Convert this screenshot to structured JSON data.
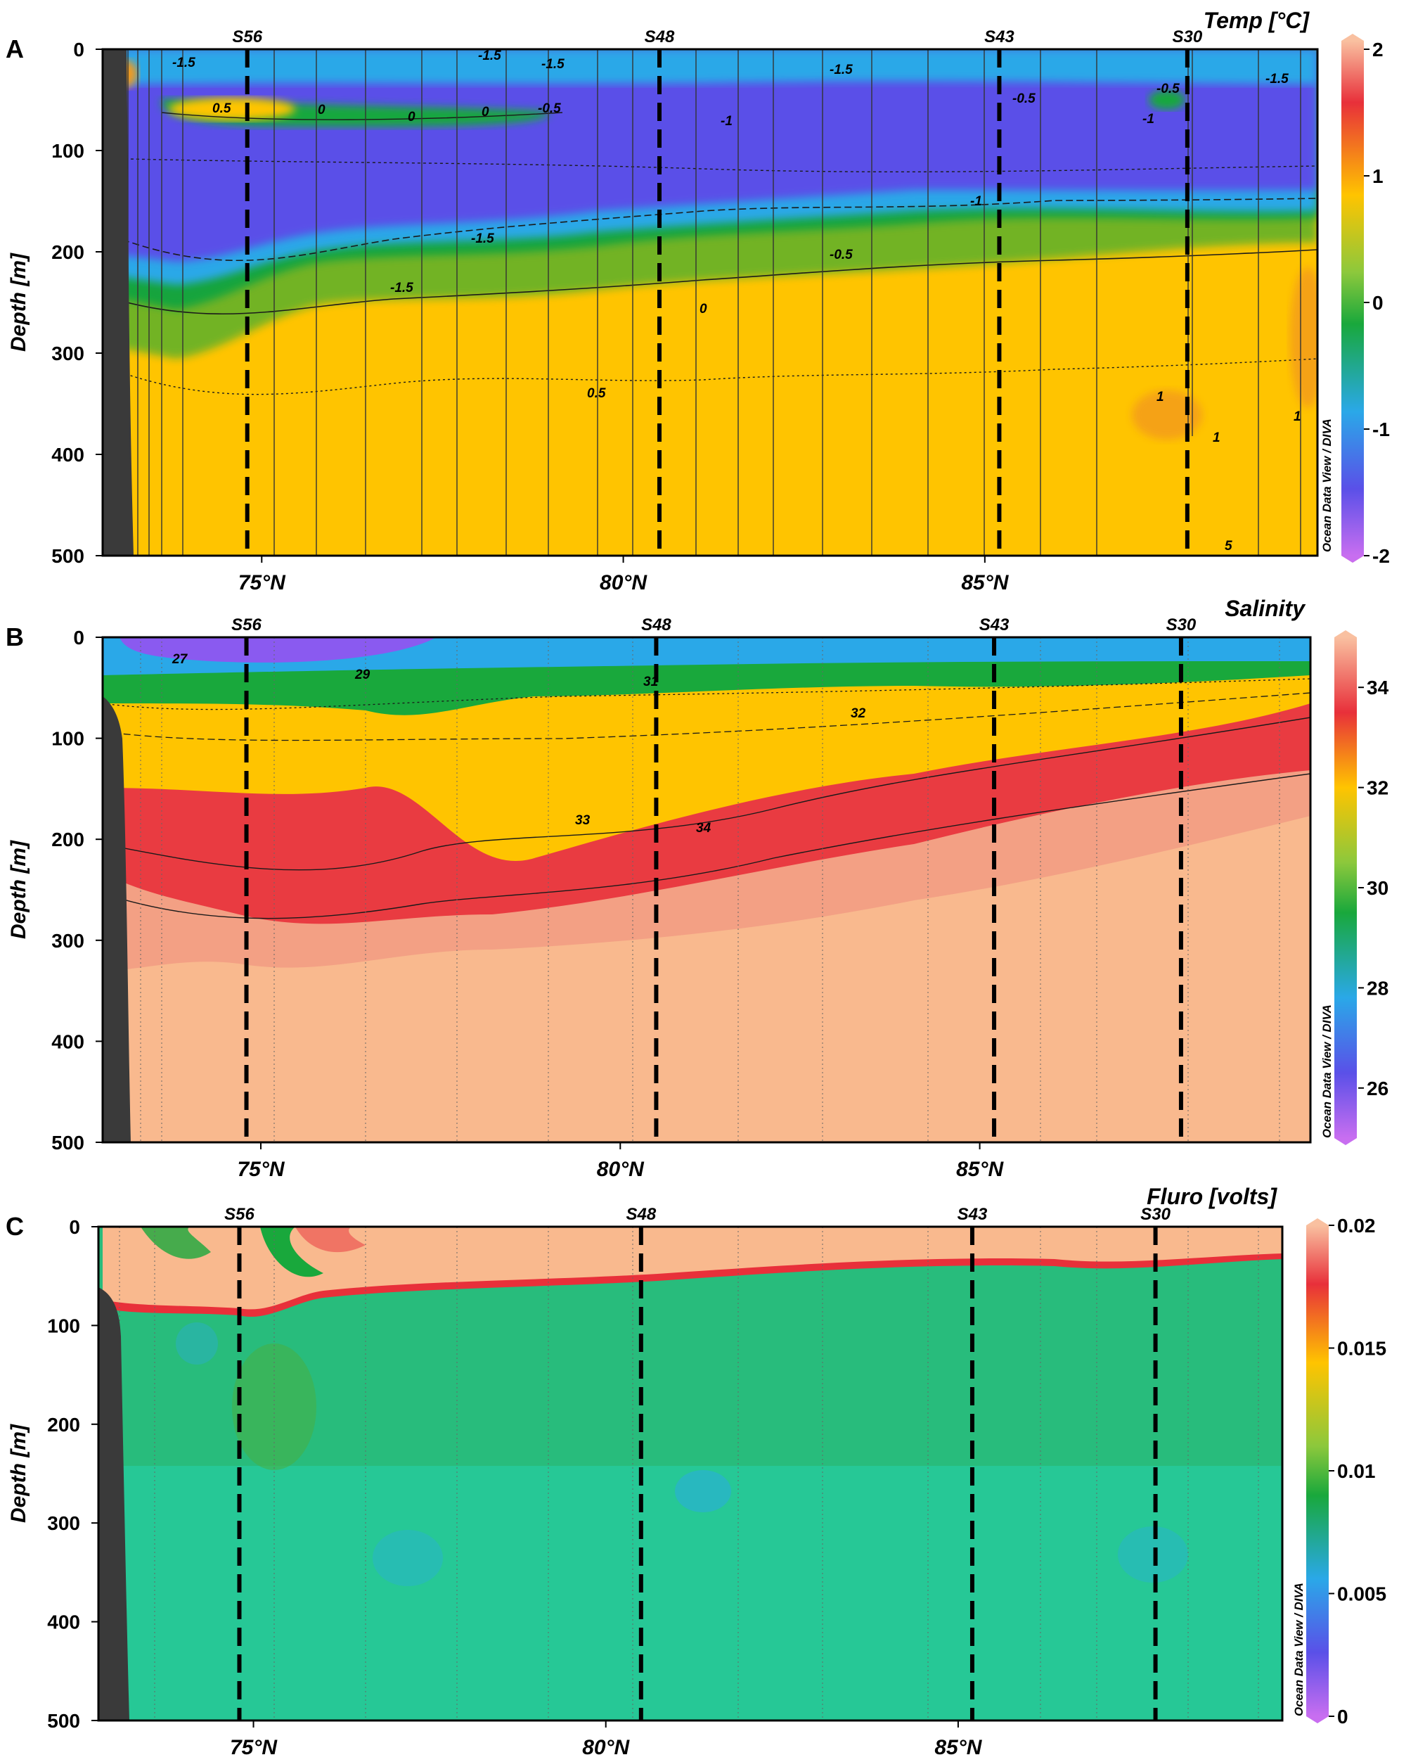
{
  "watermark": "Ocean Data View / DIVA",
  "xaxis": {
    "label": "",
    "ticks": [
      "75°N",
      "80°N",
      "85°N"
    ],
    "tick_values": [
      75,
      80,
      85
    ],
    "range": [
      72.8,
      89.6
    ]
  },
  "yaxis": {
    "label": "Depth [m]",
    "ticks": [
      "0",
      "100",
      "200",
      "300",
      "400",
      "500"
    ],
    "tick_values": [
      0,
      100,
      200,
      300,
      400,
      500
    ],
    "range": [
      0,
      500
    ],
    "inverted": true
  },
  "chart_data": [
    {
      "letter": "A",
      "type": "heatmap",
      "title": "Temp [°C]",
      "colorbar": {
        "ticks": [
          "2",
          "1",
          "0",
          "-1",
          "-2"
        ],
        "tick_values": [
          2,
          1,
          0,
          -1,
          -2
        ],
        "range": [
          -2,
          2
        ]
      },
      "stations": [
        {
          "name": "S56",
          "lat": 74.8
        },
        {
          "name": "S48",
          "lat": 80.5
        },
        {
          "name": "S43",
          "lat": 85.2
        },
        {
          "name": "S30",
          "lat": 87.8
        }
      ],
      "contour_labels": [
        "-1.5",
        "-1.5",
        "-1.5",
        "-1.5",
        "-1.5",
        "-1.5",
        "-1.5",
        "0.5",
        "0",
        "0",
        "0",
        "-0.5",
        "-1",
        "-0.5",
        "-0.5",
        "-1",
        "-1",
        "-0.5",
        "0",
        "0.5",
        "1",
        "1",
        "1",
        "5"
      ]
    },
    {
      "letter": "B",
      "type": "heatmap",
      "title": "Salinity",
      "colorbar": {
        "ticks": [
          "34",
          "32",
          "30",
          "28",
          "26"
        ],
        "tick_values": [
          34,
          32,
          30,
          28,
          26
        ],
        "range": [
          25,
          35
        ]
      },
      "stations": [
        {
          "name": "S56",
          "lat": 74.8
        },
        {
          "name": "S48",
          "lat": 80.5
        },
        {
          "name": "S43",
          "lat": 85.2
        },
        {
          "name": "S30",
          "lat": 87.8
        }
      ],
      "contour_labels": [
        "27",
        "29",
        "31",
        "32",
        "33",
        "34"
      ]
    },
    {
      "letter": "C",
      "type": "heatmap",
      "title": "Fluro [volts]",
      "colorbar": {
        "ticks": [
          "0.02",
          "0.015",
          "0.01",
          "0.005",
          "0"
        ],
        "tick_values": [
          0.02,
          0.015,
          0.01,
          0.005,
          0
        ],
        "range": [
          0,
          0.02
        ]
      },
      "stations": [
        {
          "name": "S56",
          "lat": 74.8
        },
        {
          "name": "S48",
          "lat": 80.5
        },
        {
          "name": "S43",
          "lat": 85.2
        },
        {
          "name": "S30",
          "lat": 87.8
        }
      ],
      "contour_labels": []
    }
  ]
}
